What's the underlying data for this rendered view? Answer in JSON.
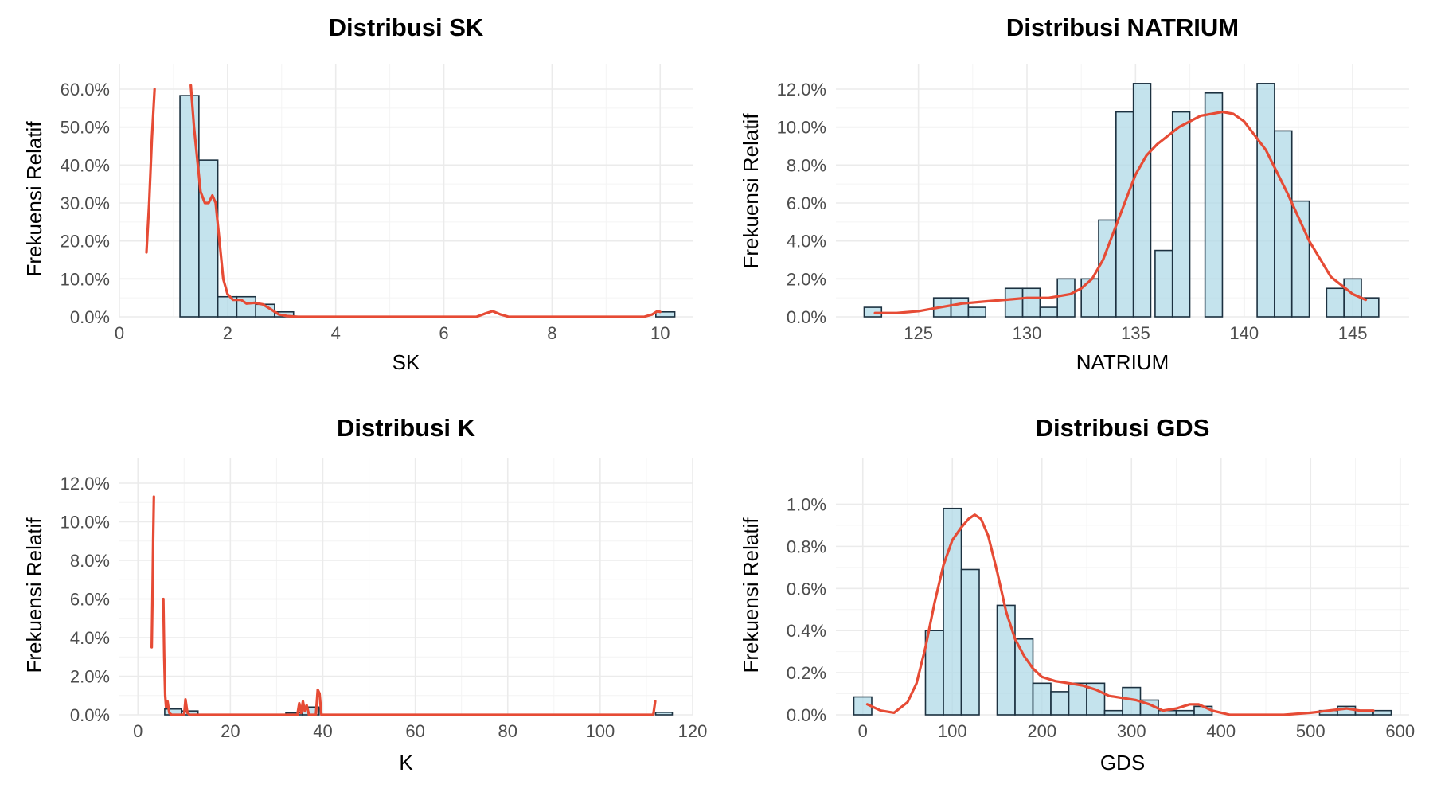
{
  "colors": {
    "bar_fill": "#add8e6",
    "bar_stroke": "#1c3140",
    "density_line": "#e64b35",
    "grid": "#ebebeb",
    "tick_text": "#4d4d4d"
  },
  "chart_data": [
    {
      "type": "bar",
      "title": "Distribusi SK",
      "xlabel": "SK",
      "ylabel": "Frekuensi Relatif",
      "xlim": [
        0,
        10.6
      ],
      "ylim": [
        0,
        0.6
      ],
      "x_ticks": [
        0,
        2,
        4,
        6,
        8,
        10
      ],
      "x_tick_labels": [
        "0",
        "2",
        "4",
        "6",
        "8",
        "10"
      ],
      "y_ticks": [
        0,
        0.1,
        0.2,
        0.3,
        0.4,
        0.5,
        0.6
      ],
      "y_tick_labels": [
        "0.0%",
        "10.0%",
        "20.0%",
        "30.0%",
        "40.0%",
        "50.0%",
        "60.0%"
      ],
      "grid": true,
      "bins": [
        {
          "x0": 1.12,
          "x1": 1.47,
          "value": 0.583
        },
        {
          "x0": 1.47,
          "x1": 1.82,
          "value": 0.413
        },
        {
          "x0": 1.82,
          "x1": 2.17,
          "value": 0.053
        },
        {
          "x0": 2.17,
          "x1": 2.52,
          "value": 0.053
        },
        {
          "x0": 2.52,
          "x1": 2.87,
          "value": 0.033
        },
        {
          "x0": 2.87,
          "x1": 3.22,
          "value": 0.013
        },
        {
          "x0": 9.92,
          "x1": 10.27,
          "value": 0.013
        }
      ],
      "density_segments": [
        [
          [
            0.5,
            0.17
          ],
          [
            0.55,
            0.3
          ],
          [
            0.6,
            0.47
          ],
          [
            0.65,
            0.6
          ]
        ],
        [
          [
            1.32,
            0.61
          ],
          [
            1.38,
            0.5
          ],
          [
            1.45,
            0.4
          ],
          [
            1.5,
            0.33
          ],
          [
            1.58,
            0.3
          ],
          [
            1.65,
            0.3
          ],
          [
            1.72,
            0.32
          ],
          [
            1.78,
            0.3
          ],
          [
            1.85,
            0.2
          ],
          [
            1.92,
            0.1
          ],
          [
            2.0,
            0.06
          ],
          [
            2.1,
            0.045
          ],
          [
            2.25,
            0.045
          ],
          [
            2.35,
            0.035
          ],
          [
            2.5,
            0.037
          ],
          [
            2.65,
            0.033
          ],
          [
            2.8,
            0.02
          ],
          [
            2.95,
            0.006
          ],
          [
            3.1,
            0.002
          ],
          [
            3.3,
            0
          ],
          [
            6.6,
            0
          ],
          [
            6.75,
            0.008
          ],
          [
            6.9,
            0.015
          ],
          [
            7.05,
            0.006
          ],
          [
            7.2,
            0
          ],
          [
            9.7,
            0
          ],
          [
            9.85,
            0.006
          ],
          [
            9.95,
            0.015
          ],
          [
            10.0,
            0.013
          ]
        ]
      ]
    },
    {
      "type": "bar",
      "title": "Distribusi NATRIUM",
      "xlabel": "NATRIUM",
      "ylabel": "Frekuensi Relatif",
      "xlim": [
        121.2,
        147.6
      ],
      "ylim": [
        0,
        0.12
      ],
      "x_ticks": [
        125,
        130,
        135,
        140,
        145
      ],
      "x_tick_labels": [
        "125",
        "130",
        "135",
        "140",
        "145"
      ],
      "y_ticks": [
        0,
        0.02,
        0.04,
        0.06,
        0.08,
        0.1,
        0.12
      ],
      "y_tick_labels": [
        "0.0%",
        "2.0%",
        "4.0%",
        "6.0%",
        "8.0%",
        "10.0%",
        "12.0%"
      ],
      "grid": true,
      "bins": [
        {
          "x0": 122.5,
          "x1": 123.3,
          "value": 0.005
        },
        {
          "x0": 125.7,
          "x1": 126.5,
          "value": 0.01
        },
        {
          "x0": 126.5,
          "x1": 127.3,
          "value": 0.01
        },
        {
          "x0": 127.3,
          "x1": 128.1,
          "value": 0.005
        },
        {
          "x0": 129.0,
          "x1": 129.8,
          "value": 0.015
        },
        {
          "x0": 129.8,
          "x1": 130.6,
          "value": 0.015
        },
        {
          "x0": 130.6,
          "x1": 131.4,
          "value": 0.005
        },
        {
          "x0": 131.4,
          "x1": 132.2,
          "value": 0.02
        },
        {
          "x0": 132.5,
          "x1": 133.3,
          "value": 0.02
        },
        {
          "x0": 133.3,
          "x1": 134.1,
          "value": 0.051
        },
        {
          "x0": 134.1,
          "x1": 134.9,
          "value": 0.108
        },
        {
          "x0": 134.9,
          "x1": 135.7,
          "value": 0.123
        },
        {
          "x0": 135.9,
          "x1": 136.7,
          "value": 0.035
        },
        {
          "x0": 136.7,
          "x1": 137.5,
          "value": 0.108
        },
        {
          "x0": 138.2,
          "x1": 139.0,
          "value": 0.118
        },
        {
          "x0": 139.0,
          "x1": 139.8,
          "value": 0.0
        },
        {
          "x0": 140.6,
          "x1": 141.4,
          "value": 0.123
        },
        {
          "x0": 141.4,
          "x1": 142.2,
          "value": 0.098
        },
        {
          "x0": 142.2,
          "x1": 143.0,
          "value": 0.061
        },
        {
          "x0": 143.8,
          "x1": 144.6,
          "value": 0.015
        },
        {
          "x0": 144.6,
          "x1": 145.4,
          "value": 0.02
        },
        {
          "x0": 145.4,
          "x1": 146.2,
          "value": 0.01
        }
      ],
      "density_segments": [
        [
          [
            123,
            0.002
          ],
          [
            124,
            0.002
          ],
          [
            125,
            0.003
          ],
          [
            126,
            0.005
          ],
          [
            127,
            0.007
          ],
          [
            128,
            0.008
          ],
          [
            129,
            0.009
          ],
          [
            130,
            0.01
          ],
          [
            131,
            0.01
          ],
          [
            132,
            0.012
          ],
          [
            132.5,
            0.015
          ],
          [
            133,
            0.02
          ],
          [
            133.5,
            0.03
          ],
          [
            134,
            0.045
          ],
          [
            134.5,
            0.06
          ],
          [
            135,
            0.075
          ],
          [
            135.5,
            0.085
          ],
          [
            136,
            0.091
          ],
          [
            137,
            0.1
          ],
          [
            138,
            0.106
          ],
          [
            139,
            0.108
          ],
          [
            139.5,
            0.107
          ],
          [
            140,
            0.103
          ],
          [
            141,
            0.088
          ],
          [
            142,
            0.065
          ],
          [
            143,
            0.04
          ],
          [
            144,
            0.021
          ],
          [
            145,
            0.012
          ],
          [
            145.6,
            0.009
          ]
        ]
      ]
    },
    {
      "type": "bar",
      "title": "Distribusi K",
      "xlabel": "K",
      "ylabel": "Frekuensi Relatif",
      "xlim": [
        -4,
        120
      ],
      "ylim": [
        0,
        0.12
      ],
      "x_ticks": [
        0,
        20,
        40,
        60,
        80,
        100,
        120
      ],
      "x_tick_labels": [
        "0",
        "20",
        "40",
        "60",
        "80",
        "100",
        "120"
      ],
      "y_ticks": [
        0,
        0.02,
        0.04,
        0.06,
        0.08,
        0.1,
        0.12
      ],
      "y_tick_labels": [
        "0.0%",
        "2.0%",
        "4.0%",
        "6.0%",
        "8.0%",
        "10.0%",
        "12.0%"
      ],
      "grid": true,
      "bins": [
        {
          "x0": 5.8,
          "x1": 9.4,
          "value": 0.003
        },
        {
          "x0": 9.4,
          "x1": 13.0,
          "value": 0.002
        },
        {
          "x0": 32.0,
          "x1": 35.6,
          "value": 0.001
        },
        {
          "x0": 35.6,
          "x1": 39.2,
          "value": 0.004
        },
        {
          "x0": 112.0,
          "x1": 115.6,
          "value": 0.0013
        }
      ],
      "density_segments": [
        [
          [
            3.0,
            0.035
          ],
          [
            3.15,
            0.06
          ],
          [
            3.3,
            0.09
          ],
          [
            3.45,
            0.113
          ]
        ],
        [
          [
            5.5,
            0.06
          ],
          [
            5.7,
            0.03
          ],
          [
            5.9,
            0.01
          ],
          [
            6.1,
            0.004
          ],
          [
            6.4,
            0.007
          ],
          [
            6.8,
            0.001
          ],
          [
            7.3,
            0
          ],
          [
            10.0,
            0
          ],
          [
            10.3,
            0.008
          ],
          [
            10.7,
            0.001
          ],
          [
            11.2,
            0
          ],
          [
            34.5,
            0
          ],
          [
            34.9,
            0.006
          ],
          [
            35.3,
            0.001
          ],
          [
            35.7,
            0.007
          ],
          [
            36.1,
            0.002
          ],
          [
            36.5,
            0.005
          ],
          [
            37.0,
            0
          ],
          [
            38.5,
            0
          ],
          [
            38.9,
            0.013
          ],
          [
            39.3,
            0.011
          ],
          [
            39.7,
            0
          ],
          [
            111.5,
            0
          ],
          [
            111.9,
            0.007
          ]
        ]
      ]
    },
    {
      "type": "bar",
      "title": "Distribusi GDS",
      "xlabel": "GDS",
      "ylabel": "Frekuensi Relatif",
      "xlim": [
        -30,
        610
      ],
      "ylim": [
        0,
        0.011
      ],
      "x_ticks": [
        0,
        100,
        200,
        300,
        400,
        500,
        600
      ],
      "x_tick_labels": [
        "0",
        "100",
        "200",
        "300",
        "400",
        "500",
        "600"
      ],
      "y_ticks": [
        0,
        0.002,
        0.004,
        0.006,
        0.008,
        0.01
      ],
      "y_tick_labels": [
        "0.0%",
        "0.2%",
        "0.4%",
        "0.6%",
        "0.8%",
        "1.0%"
      ],
      "grid": true,
      "bins": [
        {
          "x0": -10,
          "x1": 10,
          "value": 0.00085
        },
        {
          "x0": 70,
          "x1": 90,
          "value": 0.004
        },
        {
          "x0": 90,
          "x1": 110,
          "value": 0.0098
        },
        {
          "x0": 110,
          "x1": 130,
          "value": 0.0069
        },
        {
          "x0": 150,
          "x1": 170,
          "value": 0.0052
        },
        {
          "x0": 170,
          "x1": 190,
          "value": 0.0036
        },
        {
          "x0": 190,
          "x1": 210,
          "value": 0.0015
        },
        {
          "x0": 210,
          "x1": 230,
          "value": 0.0011
        },
        {
          "x0": 230,
          "x1": 250,
          "value": 0.0015
        },
        {
          "x0": 250,
          "x1": 270,
          "value": 0.0015
        },
        {
          "x0": 270,
          "x1": 290,
          "value": 0.0002
        },
        {
          "x0": 290,
          "x1": 310,
          "value": 0.0013
        },
        {
          "x0": 310,
          "x1": 330,
          "value": 0.0007
        },
        {
          "x0": 330,
          "x1": 350,
          "value": 0.0002
        },
        {
          "x0": 350,
          "x1": 370,
          "value": 0.0002
        },
        {
          "x0": 370,
          "x1": 390,
          "value": 0.0004
        },
        {
          "x0": 510,
          "x1": 530,
          "value": 0.0002
        },
        {
          "x0": 530,
          "x1": 550,
          "value": 0.0004
        },
        {
          "x0": 550,
          "x1": 570,
          "value": 0.0002
        },
        {
          "x0": 570,
          "x1": 590,
          "value": 0.0002
        }
      ],
      "density_segments": [
        [
          [
            5,
            0.0005
          ],
          [
            20,
            0.0002
          ],
          [
            35,
            0.0001
          ],
          [
            50,
            0.0006
          ],
          [
            60,
            0.0015
          ],
          [
            70,
            0.0032
          ],
          [
            80,
            0.0053
          ],
          [
            90,
            0.0071
          ],
          [
            100,
            0.0083
          ],
          [
            110,
            0.0089
          ],
          [
            118,
            0.0093
          ],
          [
            125,
            0.0095
          ],
          [
            132,
            0.0093
          ],
          [
            140,
            0.0085
          ],
          [
            150,
            0.0068
          ],
          [
            160,
            0.0049
          ],
          [
            170,
            0.0036
          ],
          [
            180,
            0.0028
          ],
          [
            190,
            0.0022
          ],
          [
            200,
            0.0018
          ],
          [
            215,
            0.0016
          ],
          [
            230,
            0.0015
          ],
          [
            245,
            0.0014
          ],
          [
            260,
            0.0012
          ],
          [
            275,
            0.0009
          ],
          [
            290,
            0.0008
          ],
          [
            305,
            0.0007
          ],
          [
            320,
            0.0005
          ],
          [
            335,
            0.0002
          ],
          [
            350,
            0.0003
          ],
          [
            365,
            0.0005
          ],
          [
            375,
            0.0005
          ],
          [
            390,
            0.0002
          ],
          [
            410,
            0.0
          ],
          [
            470,
            0.0
          ],
          [
            500,
            0.0001
          ],
          [
            520,
            0.0002
          ],
          [
            540,
            0.0003
          ],
          [
            555,
            0.0002
          ],
          [
            570,
            0.0002
          ]
        ]
      ]
    }
  ]
}
